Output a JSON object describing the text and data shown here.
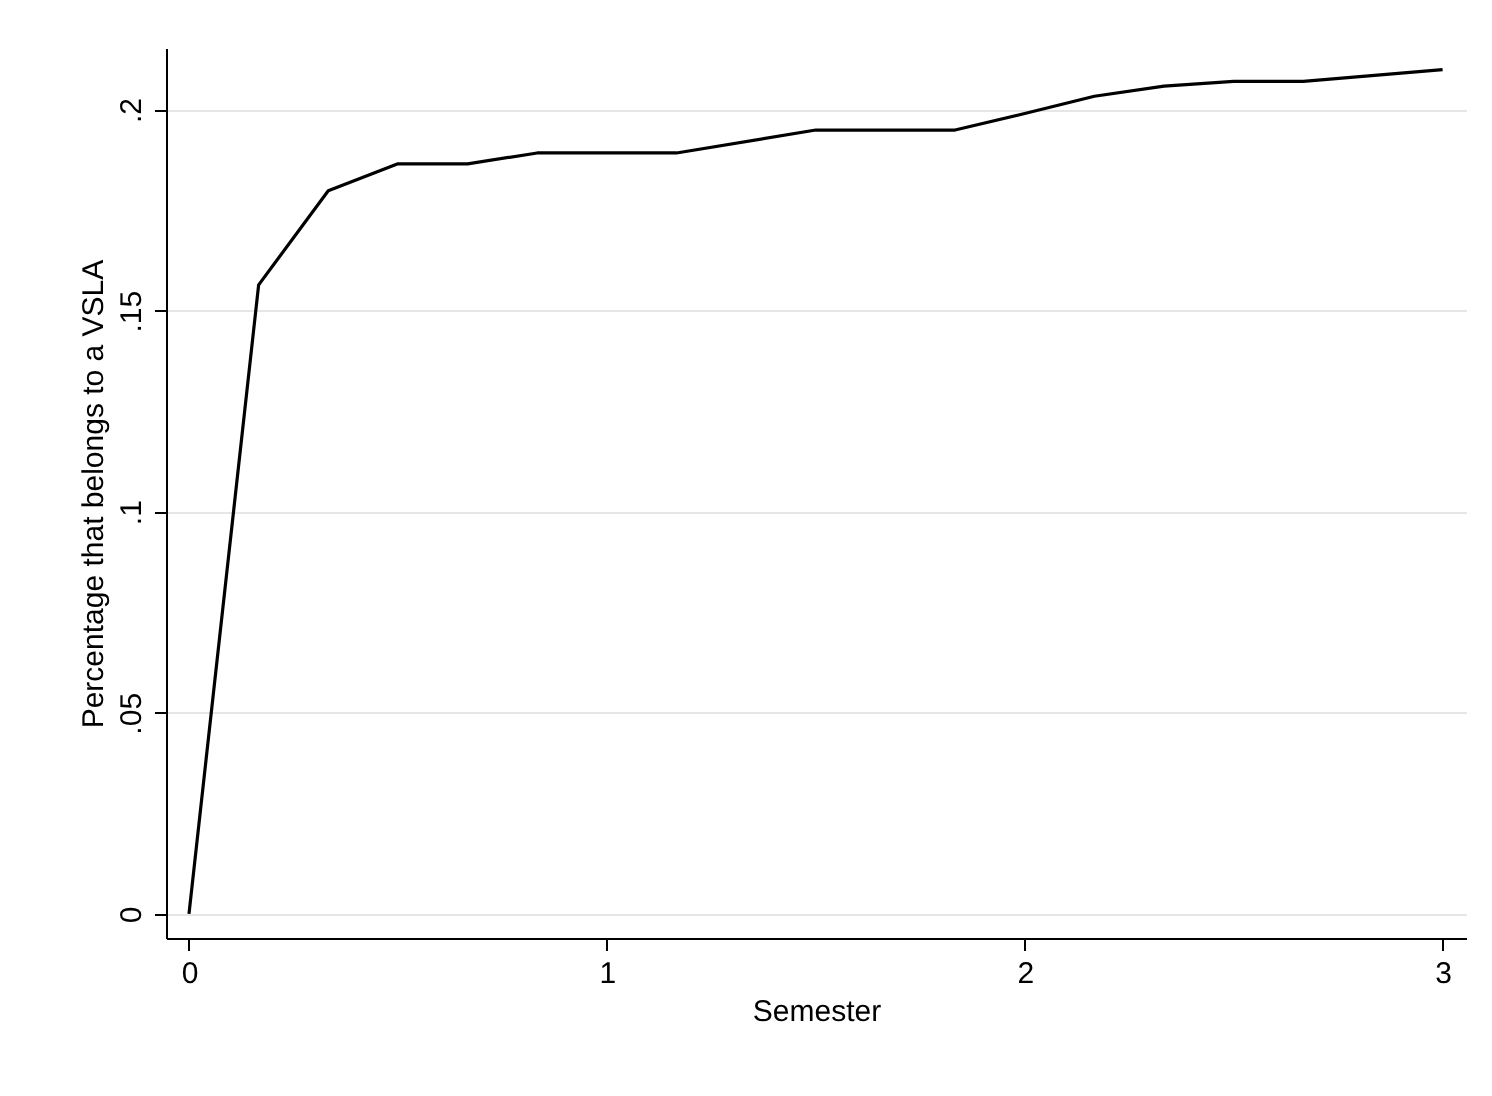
{
  "chart_data": {
    "type": "line",
    "xlabel": "Semester",
    "ylabel": "Percentage that belongs to a VSLA",
    "x": [
      0,
      0.1667,
      0.3333,
      0.5,
      0.6667,
      0.8333,
      1.0,
      1.1667,
      1.5,
      1.6667,
      1.8333,
      2.0,
      2.1667,
      2.3333,
      2.5,
      2.6667,
      3.0
    ],
    "series": [
      {
        "color": "#000000",
        "values": [
          0,
          0.1564,
          0.1798,
          0.1865,
          0.1865,
          0.1892,
          0.1892,
          0.1892,
          0.1949,
          0.1949,
          0.1949,
          0.199,
          0.2033,
          0.2058,
          0.207,
          0.207,
          0.2099
        ]
      }
    ],
    "xlim": [
      -0.055,
      3.056
    ],
    "ylim": [
      -0.006,
      0.2153
    ],
    "xticks": [
      0,
      1,
      2,
      3
    ],
    "yticks": [
      0,
      {
        "value": 0.05,
        "label": ".05"
      },
      {
        "value": 0.1,
        "label": ".1"
      },
      {
        "value": 0.15,
        "label": ".15"
      },
      {
        "value": 0.2,
        "label": ".2"
      }
    ],
    "grid": "y"
  }
}
